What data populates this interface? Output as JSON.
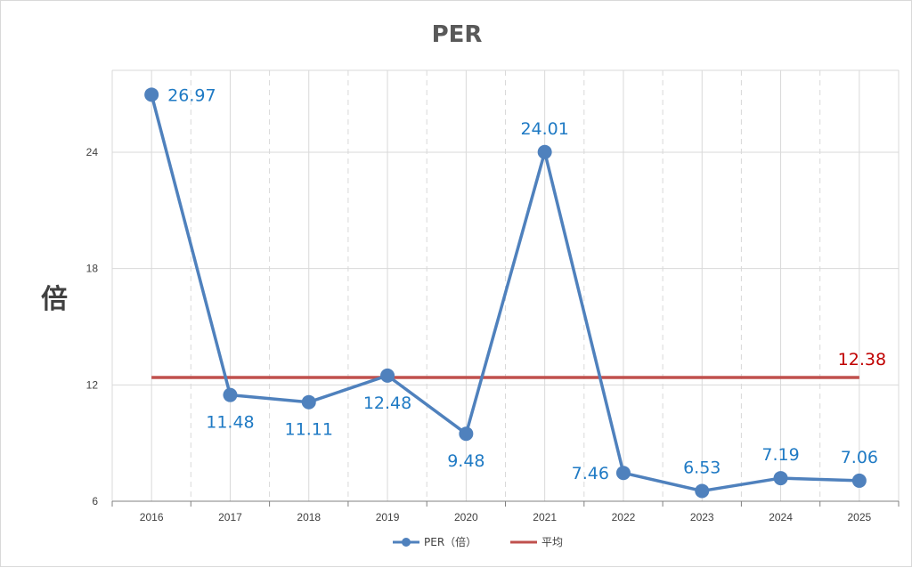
{
  "chart_data": {
    "type": "line",
    "title": "PER",
    "ylabel": "倍",
    "xlabel": "",
    "categories": [
      "2016",
      "2017",
      "2018",
      "2019",
      "2020",
      "2021",
      "2022",
      "2023",
      "2024",
      "2025"
    ],
    "series": [
      {
        "name": "PER（倍）",
        "values": [
          26.97,
          11.48,
          11.11,
          12.48,
          9.48,
          24.01,
          7.46,
          6.53,
          7.19,
          7.06
        ],
        "color": "#4f81bd",
        "labels": [
          "26.97",
          "11.48",
          "11.11",
          "12.48",
          "9.48",
          "24.01",
          "7.46",
          "6.53",
          "7.19",
          "7.06"
        ]
      },
      {
        "name": "平均",
        "values": [
          12.38,
          12.38,
          12.38,
          12.38,
          12.38,
          12.38,
          12.38,
          12.38,
          12.38,
          12.38
        ],
        "color": "#c0504d",
        "label": "12.38"
      }
    ],
    "yticks": [
      "6",
      "12",
      "18",
      "24"
    ],
    "ylim": [
      6,
      27.5
    ],
    "grid": true,
    "legend": "bottom",
    "colors": {
      "data_label": "#1f7ac4",
      "avg_label": "#c00000",
      "grid": "#d9d9d9",
      "axis": "#808080"
    }
  }
}
